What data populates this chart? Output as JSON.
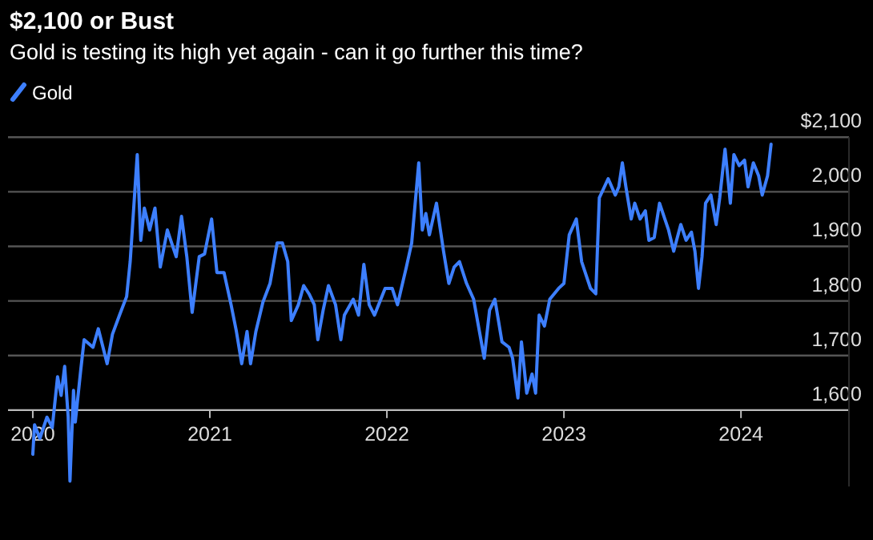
{
  "chart_data": {
    "type": "line",
    "title": "$2,100 or Bust",
    "subtitle": "Gold is testing its high yet again - can it go further this time?",
    "series": [
      {
        "name": "Gold",
        "color": "#3d7fff",
        "x": [
          2020.0,
          2020.01,
          2020.04,
          2020.08,
          2020.11,
          2020.14,
          2020.16,
          2020.18,
          2020.2,
          2020.21,
          2020.23,
          2020.24,
          2020.27,
          2020.29,
          2020.34,
          2020.37,
          2020.42,
          2020.45,
          2020.49,
          2020.53,
          2020.55,
          2020.57,
          2020.59,
          2020.61,
          2020.63,
          2020.66,
          2020.69,
          2020.72,
          2020.76,
          2020.81,
          2020.84,
          2020.87,
          2020.9,
          2020.94,
          2020.97,
          2021.01,
          2021.04,
          2021.08,
          2021.12,
          2021.15,
          2021.18,
          2021.21,
          2021.23,
          2021.26,
          2021.3,
          2021.34,
          2021.38,
          2021.41,
          2021.44,
          2021.46,
          2021.5,
          2021.53,
          2021.56,
          2021.59,
          2021.61,
          2021.64,
          2021.67,
          2021.71,
          2021.74,
          2021.76,
          2021.81,
          2021.84,
          2021.87,
          2021.9,
          2021.93,
          2021.99,
          2022.03,
          2022.06,
          2022.11,
          2022.14,
          2022.18,
          2022.2,
          2022.22,
          2022.24,
          2022.28,
          2022.32,
          2022.35,
          2022.38,
          2022.41,
          2022.45,
          2022.49,
          2022.55,
          2022.58,
          2022.61,
          2022.65,
          2022.69,
          2022.71,
          2022.74,
          2022.76,
          2022.79,
          2022.82,
          2022.84,
          2022.86,
          2022.89,
          2022.92,
          2022.97,
          2023.0,
          2023.03,
          2023.07,
          2023.1,
          2023.15,
          2023.18,
          2023.2,
          2023.25,
          2023.29,
          2023.31,
          2023.33,
          2023.35,
          2023.38,
          2023.4,
          2023.43,
          2023.46,
          2023.48,
          2023.51,
          2023.54,
          2023.57,
          2023.59,
          2023.62,
          2023.66,
          2023.69,
          2023.72,
          2023.74,
          2023.76,
          2023.78,
          2023.8,
          2023.83,
          2023.86,
          2023.88,
          2023.91,
          2023.94,
          2023.96,
          2023.99,
          2024.02,
          2024.04,
          2024.07,
          2024.1,
          2024.12,
          2024.15,
          2024.17
        ],
        "values": [
          1519,
          1573,
          1548,
          1587,
          1568,
          1661,
          1627,
          1680,
          1587,
          1470,
          1636,
          1578,
          1671,
          1729,
          1715,
          1749,
          1685,
          1739,
          1774,
          1808,
          1872,
          1970,
          2068,
          1911,
          1970,
          1930,
          1970,
          1862,
          1930,
          1881,
          1955,
          1881,
          1779,
          1881,
          1886,
          1950,
          1852,
          1852,
          1793,
          1744,
          1685,
          1744,
          1685,
          1744,
          1798,
          1832,
          1906,
          1906,
          1872,
          1764,
          1793,
          1828,
          1813,
          1793,
          1729,
          1783,
          1828,
          1793,
          1729,
          1774,
          1803,
          1774,
          1867,
          1793,
          1774,
          1823,
          1823,
          1793,
          1862,
          1906,
          2053,
          1930,
          1960,
          1921,
          1979,
          1891,
          1832,
          1862,
          1872,
          1832,
          1803,
          1695,
          1783,
          1803,
          1725,
          1715,
          1695,
          1622,
          1725,
          1631,
          1666,
          1631,
          1774,
          1754,
          1803,
          1823,
          1832,
          1921,
          1950,
          1872,
          1823,
          1813,
          1989,
          2024,
          1994,
          2009,
          2053,
          2009,
          1950,
          1979,
          1950,
          1965,
          1911,
          1916,
          1979,
          1950,
          1931,
          1891,
          1940,
          1911,
          1926,
          1891,
          1823,
          1881,
          1979,
          1994,
          1940,
          1989,
          2078,
          1979,
          2068,
          2048,
          2058,
          2009,
          2053,
          2029,
          1994,
          2029,
          2087
        ]
      }
    ],
    "xlim": [
      2019.86,
      2024.61
    ],
    "xticks": [
      2020,
      2021,
      2022,
      2023,
      2024
    ],
    "ylim": [
      1460,
      2100
    ],
    "yticks": [
      {
        "value": 2100,
        "label": "$2,100"
      },
      {
        "value": 2000,
        "label": "2,000"
      },
      {
        "value": 1900,
        "label": "1,900"
      },
      {
        "value": 1800,
        "label": "1,800"
      },
      {
        "value": 1700,
        "label": "1,700"
      },
      {
        "value": 1600,
        "label": "1,600"
      }
    ],
    "grid": "y",
    "legend": "top left",
    "line_style": "solid"
  }
}
